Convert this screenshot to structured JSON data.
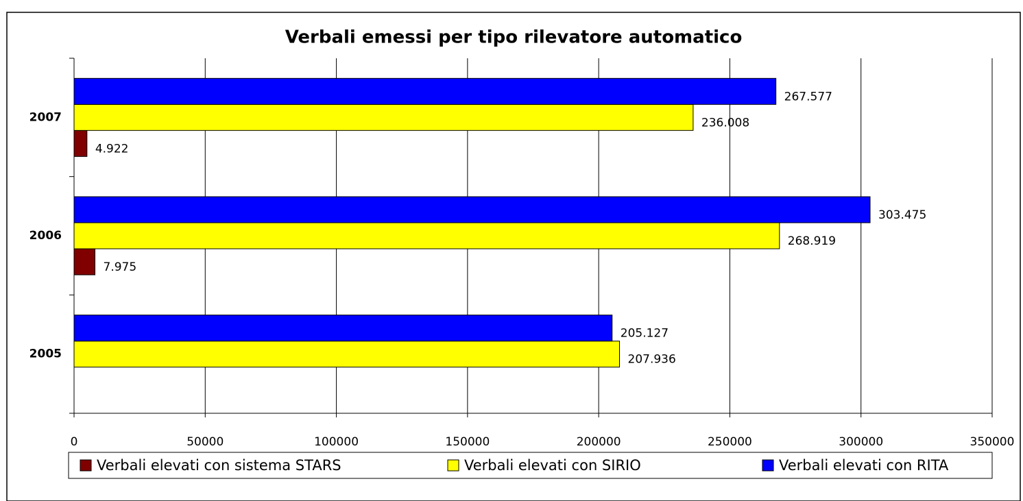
{
  "chart_data": {
    "type": "hbar",
    "title": "Verbali emessi per tipo rilevatore automatico",
    "categories": [
      "2005",
      "2006",
      "2007"
    ],
    "series": [
      {
        "name": "Verbali elevati con sistema STARS",
        "color": "#800000",
        "values": [
          null,
          7975,
          4922
        ],
        "value_labels": [
          null,
          "7.975",
          "4.922"
        ]
      },
      {
        "name": "Verbali elevati con SIRIO",
        "color": "#ffff00",
        "values": [
          207936,
          268919,
          236008
        ],
        "value_labels": [
          "207.936",
          "268.919",
          "236.008"
        ]
      },
      {
        "name": "Verbali elevati con RITA",
        "color": "#0000ff",
        "values": [
          205127,
          303475,
          267577
        ],
        "value_labels": [
          "205.127",
          "303.475",
          "267.577"
        ]
      }
    ],
    "xlim": [
      0,
      350000
    ],
    "xticks": [
      0,
      50000,
      100000,
      150000,
      200000,
      250000,
      300000,
      350000
    ],
    "grid": true,
    "legend": "bottom"
  }
}
